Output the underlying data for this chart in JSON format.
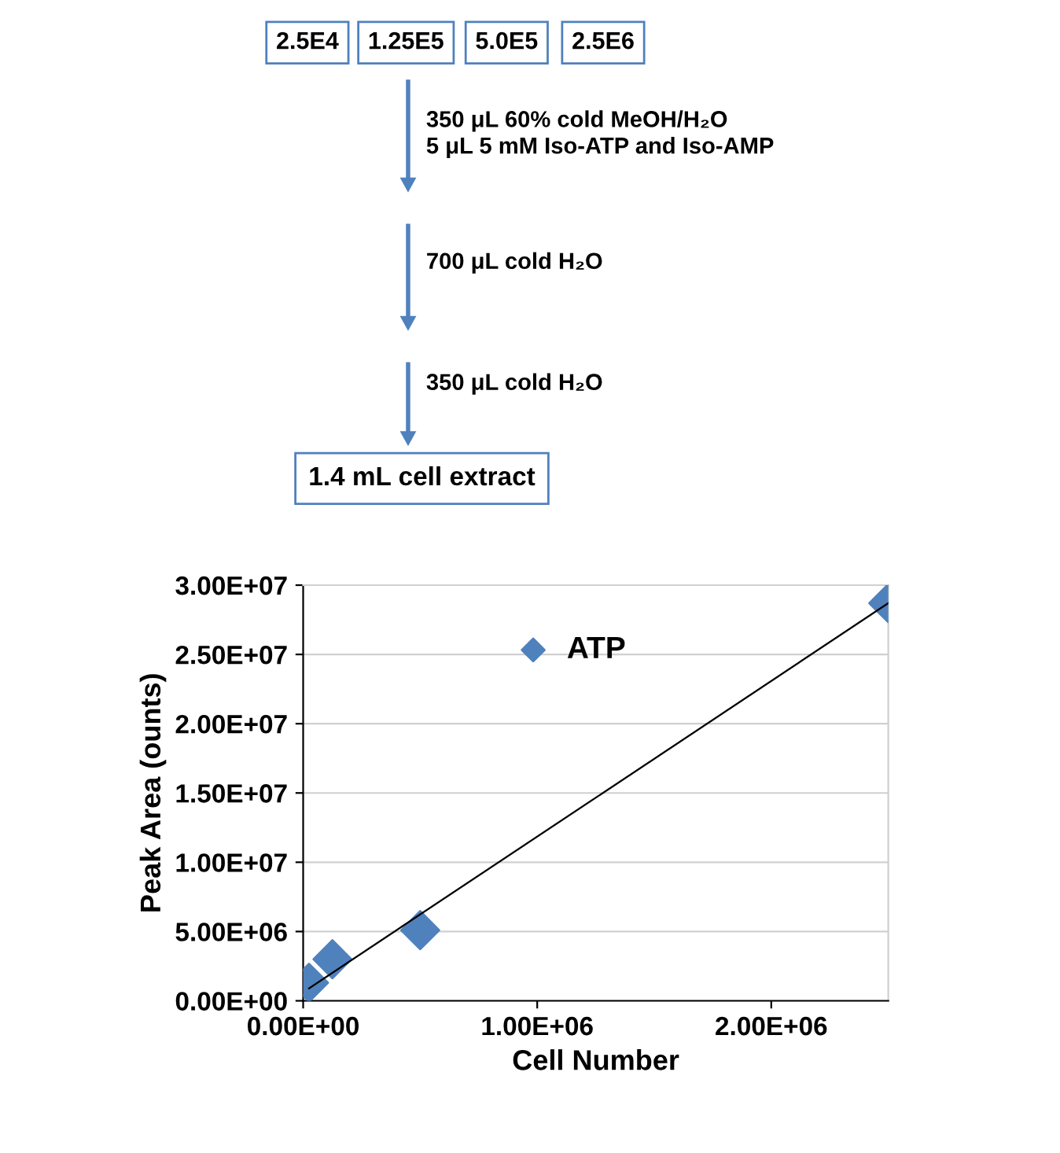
{
  "chart_data": {
    "type": "scatter",
    "xlabel": "Cell Number",
    "ylabel": "Peak Area (ounts)",
    "annotations": [
      "2.5E4",
      "1.25E5",
      "5.0E5",
      "2.5E6",
      "350 μL 60% cold MeOH/H₂O",
      "5 μL 5 mM Iso-ATP and Iso-AMP",
      "700 μL cold H₂O",
      "350 μL cold H₂O",
      "1.4 mL cell extract"
    ],
    "series": [
      {
        "name": "ATP",
        "color": "#4f81bd",
        "x": [
          25000,
          125000,
          500000,
          2500000
        ],
        "values": [
          1300000,
          3000000,
          5100000,
          28700000
        ],
        "marker": "diamond"
      },
      {
        "type": "line",
        "color": "#000000",
        "x": [
          25000,
          2500000
        ],
        "values": [
          900000,
          28700000
        ],
        "marker": "none"
      }
    ],
    "xlim": [
      0,
      2500000
    ],
    "ylim": [
      0,
      30000000
    ],
    "xticks": [
      {
        "value": 0,
        "label": "0.00E+00"
      },
      {
        "value": 1000000,
        "label": "1.00E+06"
      },
      {
        "value": 2000000,
        "label": "2.00E+06"
      }
    ],
    "yticks": [
      {
        "value": 0,
        "label": "0.00E+00"
      },
      {
        "value": 5000000,
        "label": "5.00E+06"
      },
      {
        "value": 10000000,
        "label": "1.00E+07"
      },
      {
        "value": 15000000,
        "label": "1.50E+07"
      },
      {
        "value": 20000000,
        "label": "2.00E+07"
      },
      {
        "value": 25000000,
        "label": "2.50E+07"
      },
      {
        "value": 30000000,
        "label": "3.00E+07"
      }
    ],
    "grid": "y",
    "legend": "top"
  }
}
